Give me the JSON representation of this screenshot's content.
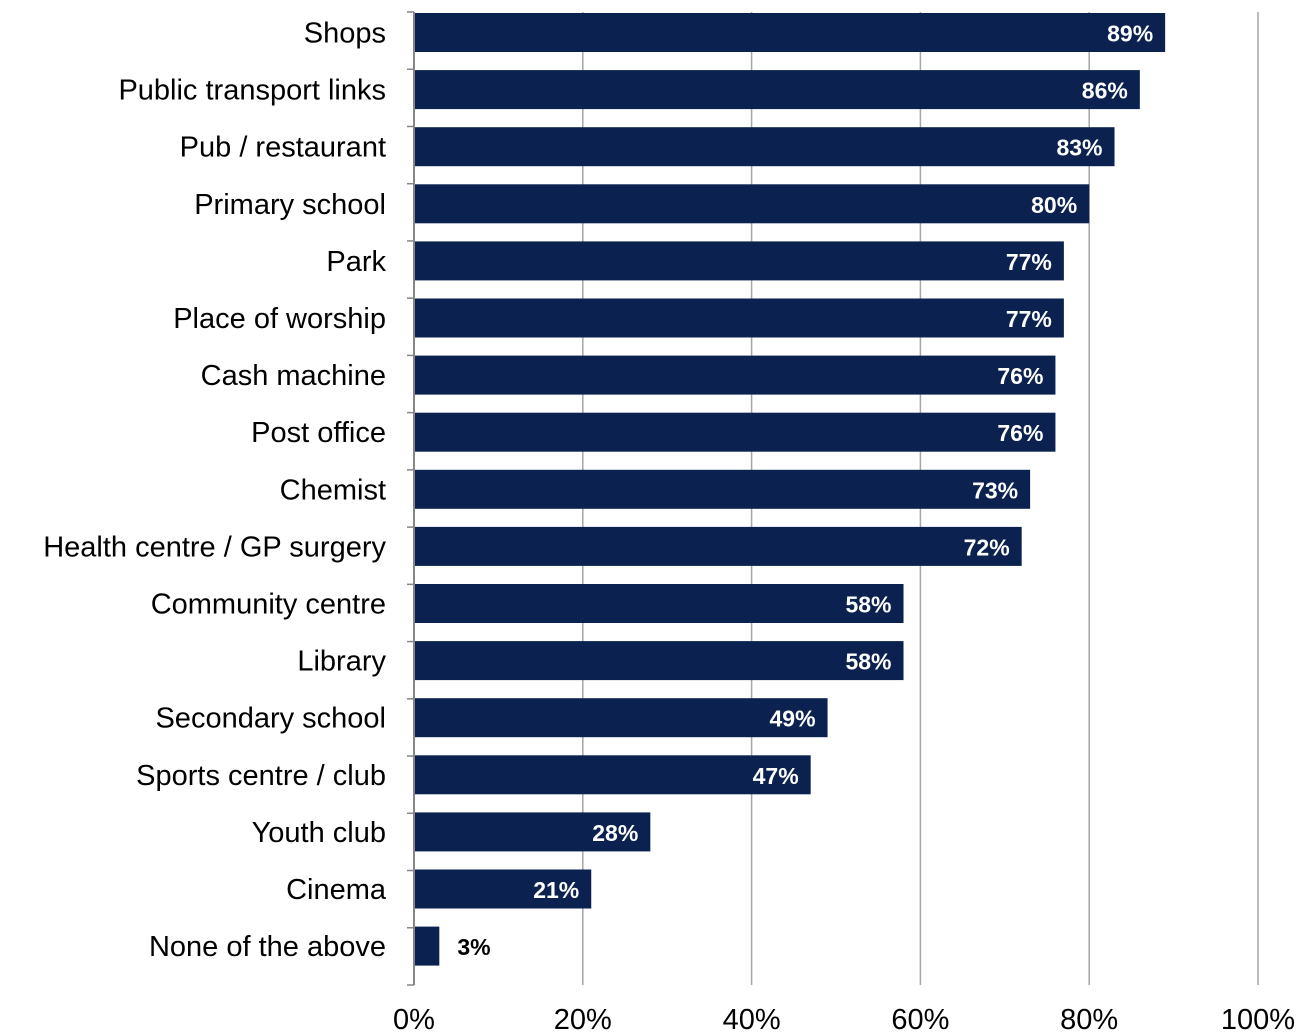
{
  "chart_data": {
    "type": "bar",
    "orientation": "horizontal",
    "categories": [
      "Shops",
      "Public transport links",
      "Pub / restaurant",
      "Primary school",
      "Park",
      "Place of worship",
      "Cash machine",
      "Post office",
      "Chemist",
      "Health centre / GP surgery",
      "Community centre",
      "Library",
      "Secondary school",
      "Sports centre / club",
      "Youth club",
      "Cinema",
      "None of the above"
    ],
    "values": [
      89,
      86,
      83,
      80,
      77,
      77,
      76,
      76,
      73,
      72,
      58,
      58,
      49,
      47,
      28,
      21,
      3
    ],
    "data_labels": [
      "89%",
      "86%",
      "83%",
      "80%",
      "77%",
      "77%",
      "76%",
      "76%",
      "73%",
      "72%",
      "58%",
      "58%",
      "49%",
      "47%",
      "28%",
      "21%",
      "3%"
    ],
    "xlim": [
      0,
      100
    ],
    "x_ticks": [
      0,
      20,
      40,
      60,
      80,
      100
    ],
    "x_tick_labels": [
      "0%",
      "20%",
      "40%",
      "60%",
      "80%",
      "100%"
    ],
    "title": "",
    "xlabel": "",
    "ylabel": "",
    "grid": "vertical",
    "legend": "none",
    "colors": {
      "bar": "#0b2250",
      "gridline": "#a6a6a6",
      "axis": "#868686",
      "label_inside": "#ffffff",
      "label_outside": "#000000"
    }
  }
}
